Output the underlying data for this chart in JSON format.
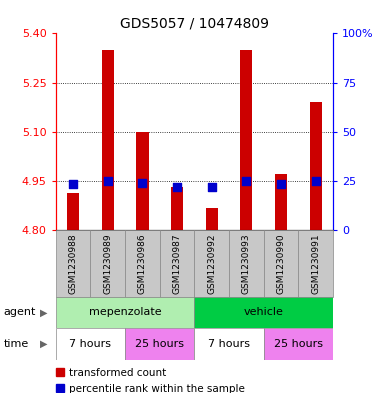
{
  "title": "GDS5057 / 10474809",
  "samples": [
    "GSM1230988",
    "GSM1230989",
    "GSM1230986",
    "GSM1230987",
    "GSM1230992",
    "GSM1230993",
    "GSM1230990",
    "GSM1230991"
  ],
  "red_values": [
    4.912,
    5.35,
    5.1,
    4.93,
    4.868,
    5.35,
    4.97,
    5.19
  ],
  "blue_values": [
    4.94,
    4.95,
    4.942,
    4.93,
    4.932,
    4.95,
    4.94,
    4.948
  ],
  "y_min": 4.8,
  "y_max": 5.4,
  "y_ticks": [
    4.8,
    4.95,
    5.1,
    5.25,
    5.4
  ],
  "y_right_ticks": [
    0,
    25,
    50,
    75,
    100
  ],
  "bar_color": "#CC0000",
  "blue_color": "#0000CC",
  "sample_bg_color": "#C8C8C8",
  "agent_color_mep": "#B0EEB0",
  "agent_color_veh": "#00CC44",
  "time_color_7h": "#FFFFFF",
  "time_color_25h": "#EE82EE",
  "bar_width": 0.35,
  "blue_size": 30,
  "title_fontsize": 10,
  "label_fontsize": 8,
  "tick_fontsize": 8,
  "sample_fontsize": 6.5
}
